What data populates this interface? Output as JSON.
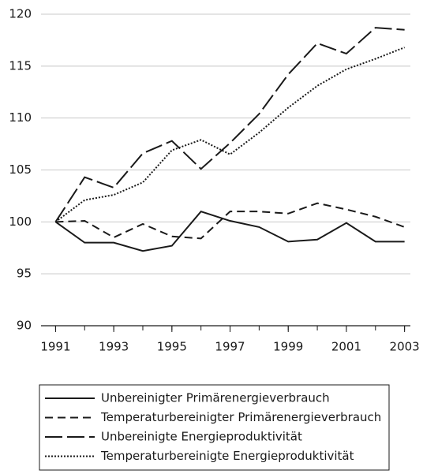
{
  "chart_data": {
    "type": "line",
    "x": [
      1991,
      1992,
      1993,
      1994,
      1995,
      1996,
      1997,
      1998,
      1999,
      2000,
      2001,
      2002,
      2003
    ],
    "series": [
      {
        "name": "Unbereinigter Primärenergieverbrauch",
        "color": "#1a1a1a",
        "dash": "solid",
        "values": [
          100,
          98,
          98,
          97.2,
          97.7,
          101,
          100.1,
          99.5,
          98.1,
          98.3,
          99.9,
          98.1,
          98.1
        ]
      },
      {
        "name": "Temperaturbereinigter Primärenergieverbrauch",
        "color": "#1a1a1a",
        "dash": "dashed",
        "values": [
          100,
          100.1,
          98.5,
          99.8,
          98.6,
          98.4,
          101,
          101,
          100.8,
          101.8,
          101.2,
          100.5,
          99.5
        ]
      },
      {
        "name": "Unbereinigte Energieproduktivität",
        "color": "#1a1a1a",
        "dash": "longdash",
        "values": [
          100,
          104.3,
          103.3,
          106.6,
          107.8,
          105.1,
          107.6,
          110.4,
          114.2,
          117.2,
          116.2,
          118.7,
          118.5
        ]
      },
      {
        "name": "Temperaturbereinigte Energieproduktivität",
        "color": "#1a1a1a",
        "dash": "dotted",
        "values": [
          100,
          102.1,
          102.6,
          103.8,
          106.9,
          107.9,
          106.5,
          108.6,
          111,
          113.1,
          114.7,
          115.7,
          116.8
        ]
      }
    ],
    "xlim": [
      1990.5,
      2003.2
    ],
    "xticks": [
      1991,
      1993,
      1995,
      1997,
      1999,
      2001,
      2003
    ],
    "ylim": [
      90,
      120
    ],
    "yticks": [
      90,
      95,
      100,
      105,
      110,
      115,
      120
    ],
    "grid": true
  }
}
